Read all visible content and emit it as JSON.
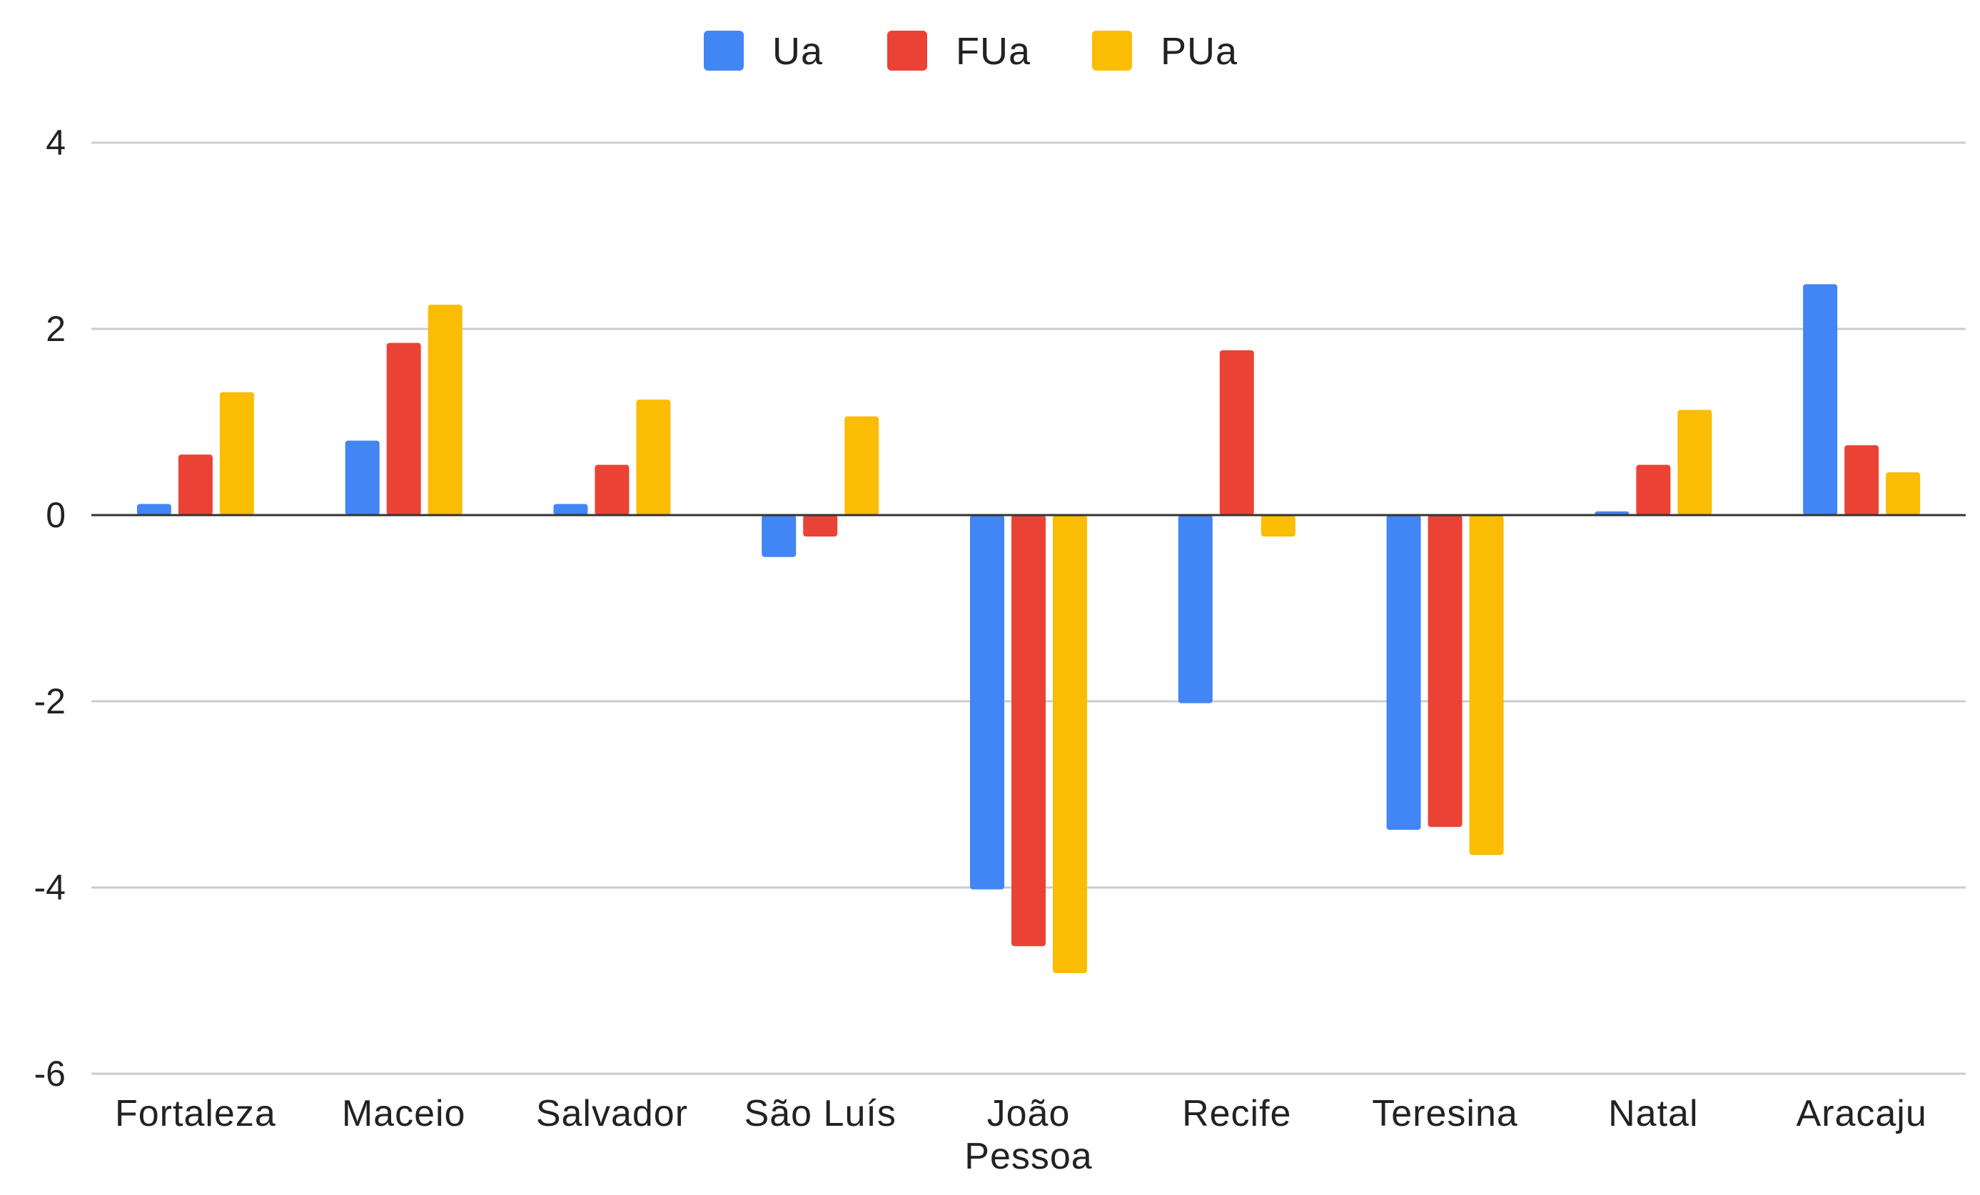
{
  "chart_data": {
    "type": "bar",
    "categories": [
      [
        "Fortaleza"
      ],
      [
        "Maceio"
      ],
      [
        "Salvador"
      ],
      [
        "São Luís"
      ],
      [
        "João",
        "Pessoa"
      ],
      [
        "Recife"
      ],
      [
        "Teresina"
      ],
      [
        "Natal"
      ],
      [
        "Aracaju"
      ]
    ],
    "series": [
      {
        "name": "Ua",
        "color": "#4285F4",
        "values": [
          0.12,
          0.8,
          0.12,
          -0.45,
          -4.02,
          -2.02,
          -3.38,
          0.04,
          2.48
        ]
      },
      {
        "name": "FUa",
        "color": "#EA4335",
        "values": [
          0.65,
          1.85,
          0.54,
          -0.23,
          -4.63,
          1.77,
          -3.35,
          0.54,
          0.75
        ]
      },
      {
        "name": "PUa",
        "color": "#FBBC04",
        "values": [
          1.32,
          2.26,
          1.24,
          1.06,
          -4.92,
          -0.23,
          -3.65,
          1.13,
          0.46
        ]
      }
    ],
    "yticks": [
      4,
      2,
      0,
      -2,
      -4,
      -6
    ],
    "ylim": [
      -6,
      4
    ],
    "grid": true,
    "legend_position": "top-center",
    "gridline_color": "#cccccc",
    "zero_line_color": "#333333"
  }
}
